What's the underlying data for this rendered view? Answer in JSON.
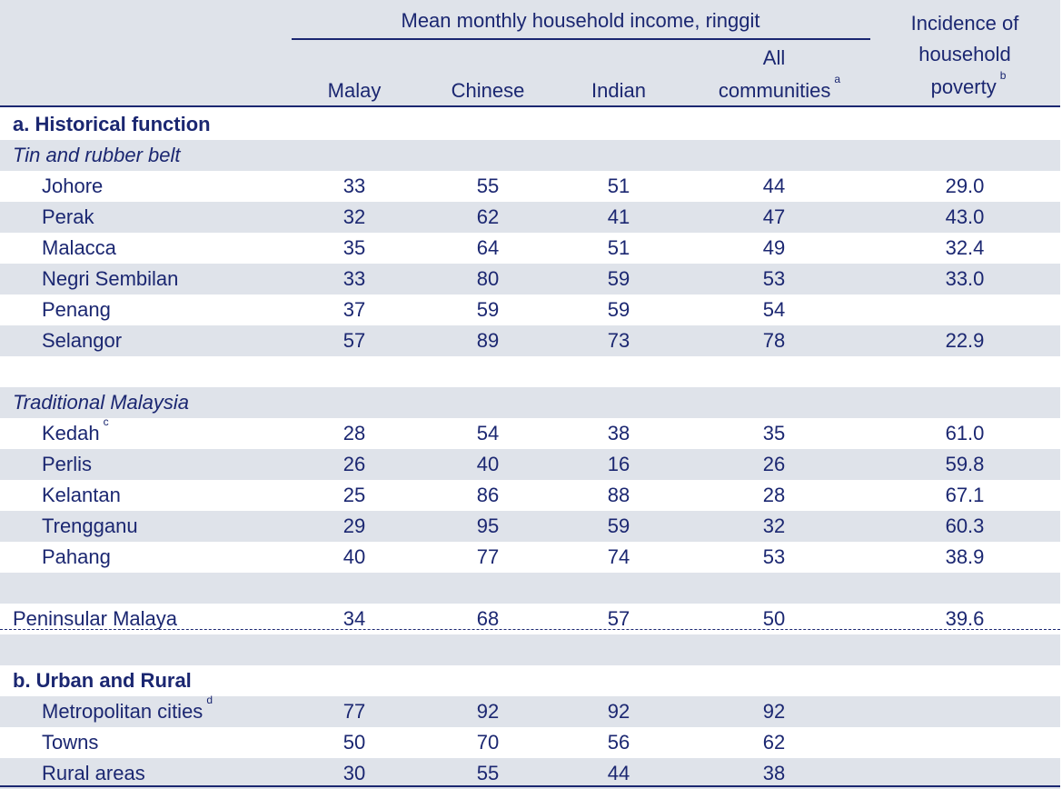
{
  "header": {
    "group_title": "Mean monthly household income, ringgit",
    "columns": [
      "Malay",
      "Chinese",
      "Indian",
      "All",
      "communities"
    ],
    "all_footnote": "a",
    "poverty_lines": [
      "Incidence of",
      "household",
      "poverty"
    ],
    "poverty_footnote": "b"
  },
  "rows": [
    {
      "type": "section",
      "label": "a. Historical function"
    },
    {
      "type": "subsection",
      "label": "Tin and rubber belt"
    },
    {
      "type": "data",
      "label": "Johore",
      "values": [
        "33",
        "55",
        "51",
        "44",
        "29.0"
      ]
    },
    {
      "type": "data",
      "label": "Perak",
      "values": [
        "32",
        "62",
        "41",
        "47",
        "43.0"
      ]
    },
    {
      "type": "data",
      "label": "Malacca",
      "values": [
        "35",
        "64",
        "51",
        "49",
        "32.4"
      ]
    },
    {
      "type": "data",
      "label": "Negri Sembilan",
      "values": [
        "33",
        "80",
        "59",
        "53",
        "33.0"
      ]
    },
    {
      "type": "data",
      "label": "Penang",
      "values": [
        "37",
        "59",
        "59",
        "54",
        ""
      ]
    },
    {
      "type": "data",
      "label": "Selangor",
      "values": [
        "57",
        "89",
        "73",
        "78",
        "22.9"
      ]
    },
    {
      "type": "blank"
    },
    {
      "type": "subsection",
      "label": "Traditional Malaysia"
    },
    {
      "type": "data",
      "label": "Kedah",
      "footnote": "c",
      "values": [
        "28",
        "54",
        "38",
        "35",
        "61.0"
      ]
    },
    {
      "type": "data",
      "label": "Perlis",
      "values": [
        "26",
        "40",
        "16",
        "26",
        "59.8"
      ]
    },
    {
      "type": "data",
      "label": "Kelantan",
      "values": [
        "25",
        "86",
        "88",
        "28",
        "67.1"
      ]
    },
    {
      "type": "data",
      "label": "Trengganu",
      "values": [
        "29",
        "95",
        "59",
        "32",
        "60.3"
      ]
    },
    {
      "type": "data",
      "label": "Pahang",
      "values": [
        "40",
        "77",
        "74",
        "53",
        "38.9"
      ]
    },
    {
      "type": "blank"
    },
    {
      "type": "total",
      "label": "Peninsular Malaya",
      "values": [
        "34",
        "68",
        "57",
        "50",
        "39.6"
      ]
    },
    {
      "type": "blank"
    },
    {
      "type": "section",
      "label": "b. Urban and Rural"
    },
    {
      "type": "data",
      "label": "Metropolitan cities",
      "footnote": "d",
      "values": [
        "77",
        "92",
        "92",
        "92",
        ""
      ]
    },
    {
      "type": "data",
      "label": "Towns",
      "values": [
        "50",
        "70",
        "56",
        "62",
        ""
      ]
    },
    {
      "type": "data",
      "label": "Rural areas",
      "values": [
        "30",
        "55",
        "44",
        "38",
        ""
      ]
    }
  ]
}
